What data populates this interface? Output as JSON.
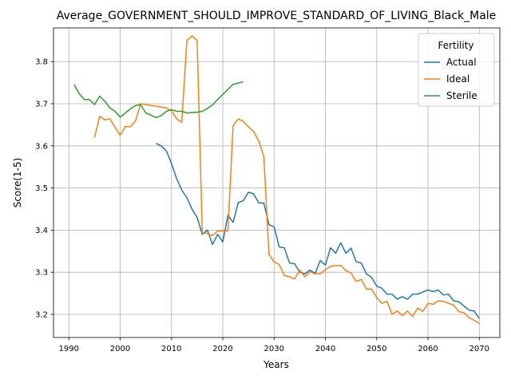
{
  "chart_data": {
    "type": "line",
    "title": "Average_GOVERNMENT_SHOULD_IMPROVE_STANDARD_OF_LIVING_Black_Male",
    "xlabel": "Years",
    "ylabel": "Score(1-5)",
    "xlim": [
      1987,
      2074
    ],
    "ylim": [
      3.145,
      3.88
    ],
    "xticks": [
      1990,
      2000,
      2010,
      2020,
      2030,
      2040,
      2050,
      2060,
      2070
    ],
    "yticks": [
      3.2,
      3.3,
      3.4,
      3.5,
      3.6,
      3.7,
      3.8
    ],
    "grid": true,
    "legend": {
      "title": "Fertility",
      "position": "top-right"
    },
    "series": [
      {
        "name": "Actual",
        "color": "#1f77b4",
        "x": [
          2007,
          2008,
          2009,
          2010,
          2011,
          2012,
          2013,
          2014,
          2015,
          2016,
          2017,
          2018,
          2019,
          2020,
          2021,
          2022,
          2023,
          2024,
          2025,
          2026,
          2027,
          2028,
          2029,
          2030,
          2031,
          2032,
          2033,
          2034,
          2035,
          2036,
          2037,
          2038,
          2039,
          2040,
          2041,
          2042,
          2043,
          2044,
          2045,
          2046,
          2047,
          2048,
          2049,
          2050,
          2051,
          2052,
          2053,
          2054,
          2055,
          2056,
          2057,
          2058,
          2059,
          2060,
          2061,
          2062,
          2063,
          2064,
          2065,
          2066,
          2067,
          2068,
          2069,
          2070
        ],
        "values": [
          3.606,
          3.6,
          3.588,
          3.558,
          3.522,
          3.495,
          3.477,
          3.45,
          3.43,
          3.39,
          3.4,
          3.366,
          3.39,
          3.372,
          3.436,
          3.418,
          3.465,
          3.47,
          3.49,
          3.486,
          3.465,
          3.464,
          3.413,
          3.408,
          3.36,
          3.358,
          3.322,
          3.32,
          3.3,
          3.296,
          3.305,
          3.297,
          3.328,
          3.317,
          3.358,
          3.345,
          3.37,
          3.345,
          3.357,
          3.325,
          3.322,
          3.296,
          3.288,
          3.267,
          3.262,
          3.248,
          3.248,
          3.236,
          3.242,
          3.236,
          3.248,
          3.248,
          3.253,
          3.258,
          3.254,
          3.258,
          3.246,
          3.248,
          3.232,
          3.23,
          3.22,
          3.21,
          3.208,
          3.19
        ]
      },
      {
        "name": "Ideal",
        "color": "#ff7f0e",
        "x": [
          1995,
          1996,
          1997,
          1998,
          1999,
          2000,
          2001,
          2002,
          2003,
          2004,
          2005,
          2006,
          2007,
          2008,
          2009,
          2010,
          2011,
          2012,
          2013,
          2014,
          2015,
          2016,
          2017,
          2018,
          2019,
          2020,
          2021,
          2022,
          2023,
          2024,
          2025,
          2026,
          2027,
          2028,
          2029,
          2030,
          2031,
          2032,
          2033,
          2034,
          2035,
          2036,
          2037,
          2038,
          2039,
          2040,
          2041,
          2042,
          2043,
          2044,
          2045,
          2046,
          2047,
          2048,
          2049,
          2050,
          2051,
          2052,
          2053,
          2054,
          2055,
          2056,
          2057,
          2058,
          2059,
          2060,
          2061,
          2062,
          2063,
          2064,
          2065,
          2066,
          2067,
          2068,
          2069,
          2070
        ],
        "values": [
          3.62,
          3.67,
          3.662,
          3.664,
          3.644,
          3.625,
          3.646,
          3.645,
          3.66,
          3.7,
          3.698,
          3.696,
          3.694,
          3.692,
          3.69,
          3.683,
          3.664,
          3.656,
          3.85,
          3.861,
          3.85,
          3.394,
          3.392,
          3.387,
          3.398,
          3.398,
          3.398,
          3.648,
          3.664,
          3.658,
          3.645,
          3.634,
          3.612,
          3.575,
          3.342,
          3.325,
          3.318,
          3.292,
          3.289,
          3.284,
          3.305,
          3.289,
          3.301,
          3.296,
          3.296,
          3.306,
          3.314,
          3.316,
          3.316,
          3.304,
          3.298,
          3.278,
          3.283,
          3.26,
          3.26,
          3.24,
          3.226,
          3.231,
          3.2,
          3.208,
          3.197,
          3.208,
          3.195,
          3.215,
          3.207,
          3.226,
          3.224,
          3.232,
          3.231,
          3.226,
          3.222,
          3.206,
          3.204,
          3.192,
          3.186,
          3.178
        ]
      },
      {
        "name": "Sterile",
        "color": "#2ca02c",
        "x": [
          1991,
          1992,
          1993,
          1994,
          1995,
          1996,
          1997,
          1998,
          1999,
          2000,
          2001,
          2002,
          2003,
          2004,
          2005,
          2006,
          2007,
          2008,
          2009,
          2010,
          2011,
          2012,
          2013,
          2014,
          2015,
          2016,
          2017,
          2018,
          2019,
          2020,
          2021,
          2022,
          2023,
          2024
        ],
        "values": [
          3.746,
          3.724,
          3.71,
          3.71,
          3.698,
          3.718,
          3.706,
          3.69,
          3.682,
          3.668,
          3.678,
          3.688,
          3.696,
          3.698,
          3.678,
          3.673,
          3.667,
          3.672,
          3.682,
          3.686,
          3.682,
          3.682,
          3.678,
          3.679,
          3.68,
          3.682,
          3.689,
          3.697,
          3.71,
          3.722,
          3.734,
          3.746,
          3.749,
          3.752
        ]
      }
    ]
  }
}
